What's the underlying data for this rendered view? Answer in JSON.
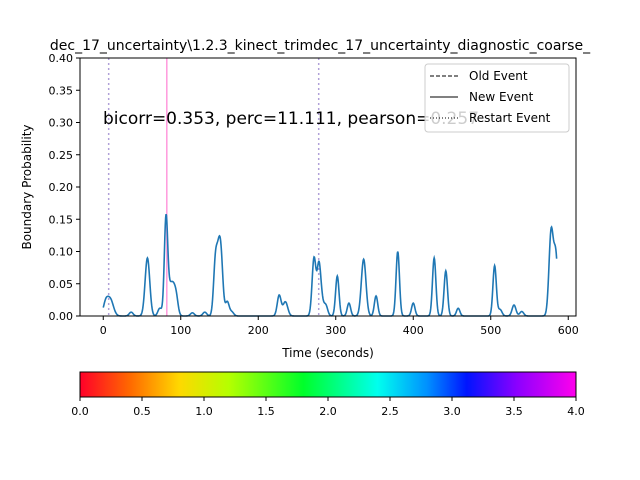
{
  "chart_data": [
    {
      "type": "line",
      "title": "dec_17_uncertainty\\1.2.3_kinect_trimdec_17_uncertainty_diagnostic_coarse_",
      "xlabel": "Time (seconds)",
      "ylabel": "Boundary Probability",
      "xlim": [
        -30,
        610
      ],
      "ylim": [
        0,
        0.4
      ],
      "x_ticks": [
        0,
        100,
        200,
        300,
        400,
        500,
        600
      ],
      "y_ticks": [
        0.0,
        0.05,
        0.1,
        0.15,
        0.2,
        0.25,
        0.3,
        0.35,
        0.4
      ],
      "x_tick_labels": [
        "0",
        "100",
        "200",
        "300",
        "400",
        "500",
        "600"
      ],
      "y_tick_labels": [
        "0.00",
        "0.05",
        "0.10",
        "0.15",
        "0.20",
        "0.25",
        "0.30",
        "0.35",
        "0.40"
      ],
      "annotation": "bicorr=0.353, perc=11.111, pearson=0.257",
      "grid": false,
      "legend_position": "top-right",
      "legend": [
        {
          "label": "Old Event",
          "style": "dashed"
        },
        {
          "label": "New Event",
          "style": "solid"
        },
        {
          "label": "Restart Event",
          "style": "dotted"
        }
      ],
      "series": [
        {
          "color": "#1f77b4",
          "x_start": 0,
          "x_end": 585,
          "baseline": 0,
          "peaks": [
            [
              3,
              0.018,
              3
            ],
            [
              9,
              0.026,
              4
            ],
            [
              36,
              0.006,
              2.5
            ],
            [
              57,
              0.09,
              3
            ],
            [
              73,
              0.012,
              2.5
            ],
            [
              81,
              0.153,
              2.2
            ],
            [
              86,
              0.035,
              2.5
            ],
            [
              90,
              0.035,
              2.5
            ],
            [
              94,
              0.03,
              2.5
            ],
            [
              115,
              0.005,
              2.5
            ],
            [
              131,
              0.006,
              2.5
            ],
            [
              145,
              0.09,
              2.5
            ],
            [
              152,
              0.086,
              2.5
            ],
            [
              149,
              0.055,
              2.2
            ],
            [
              160,
              0.022,
              2.5
            ],
            [
              166,
              0.006,
              2.5
            ],
            [
              227,
              0.032,
              2.5
            ],
            [
              235,
              0.022,
              3
            ],
            [
              272,
              0.09,
              2.5
            ],
            [
              278,
              0.065,
              2.2
            ],
            [
              281,
              0.03,
              2.5
            ],
            [
              287,
              0.017,
              2.5
            ],
            [
              302,
              0.062,
              2.2
            ],
            [
              317,
              0.02,
              2.2
            ],
            [
              336,
              0.088,
              3
            ],
            [
              352,
              0.031,
              2.2
            ],
            [
              380,
              0.1,
              2.2
            ],
            [
              400,
              0.02,
              2.2
            ],
            [
              427,
              0.09,
              2.2
            ],
            [
              442,
              0.07,
              2.2
            ],
            [
              458,
              0.012,
              2.2
            ],
            [
              505,
              0.078,
              2.2
            ],
            [
              512,
              0.01,
              2.5
            ],
            [
              530,
              0.017,
              2.5
            ],
            [
              540,
              0.007,
              2.5
            ],
            [
              578,
              0.132,
              2.8
            ],
            [
              584,
              0.09,
              2.5
            ]
          ]
        }
      ],
      "vertical_lines": [
        {
          "x": 7,
          "color": "#b0a0d8",
          "style": "dotted"
        },
        {
          "x": 82,
          "color": "#ff99dd",
          "style": "solid"
        },
        {
          "x": 278,
          "color": "#b0a0d8",
          "style": "dotted"
        }
      ]
    },
    {
      "type": "heatmap",
      "colorbar": true,
      "colormap": "gist_rainbow",
      "range": [
        0,
        4
      ],
      "ticks": [
        0.0,
        0.5,
        1.0,
        1.5,
        2.0,
        2.5,
        3.0,
        3.5,
        4.0
      ],
      "tick_labels": [
        "0.0",
        "0.5",
        "1.0",
        "1.5",
        "2.0",
        "2.5",
        "3.0",
        "3.5",
        "4.0"
      ]
    }
  ]
}
